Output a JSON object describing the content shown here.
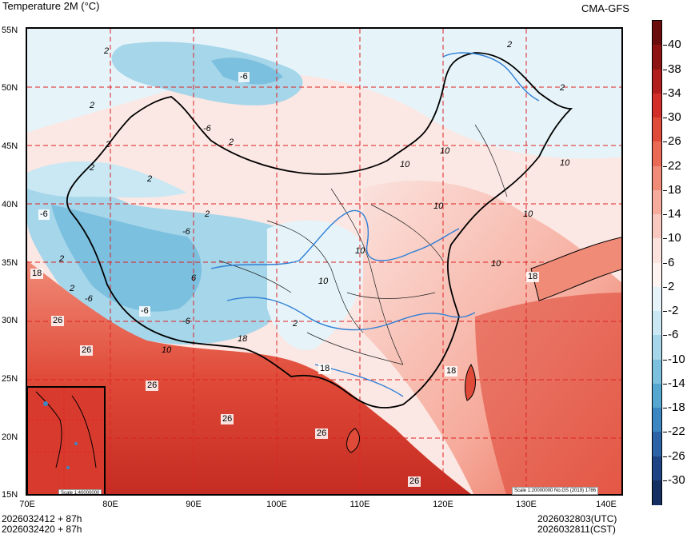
{
  "header": {
    "title": "Temperature  2M (°C)",
    "model": "CMA-GFS"
  },
  "axes": {
    "lat_labels": [
      "55N",
      "50N",
      "45N",
      "40N",
      "35N",
      "30N",
      "25N",
      "20N",
      "15N"
    ],
    "lon_labels": [
      "70E",
      "80E",
      "90E",
      "100E",
      "110E",
      "120E",
      "130E",
      "140E"
    ]
  },
  "legend": {
    "values": [
      "40",
      "38",
      "34",
      "30",
      "26",
      "22",
      "18",
      "14",
      "10",
      "6",
      "2",
      "-2",
      "-6",
      "-10",
      "-14",
      "-18",
      "-22",
      "-26",
      "-30"
    ],
    "colors": [
      "#6b0d0d",
      "#8e1414",
      "#b21d1d",
      "#d32f2a",
      "#e04a38",
      "#ea6a55",
      "#f08b78",
      "#f6ab9c",
      "#f9c8bf",
      "#fbe2dd",
      "#fdf3f1",
      "#e6f4fa",
      "#c9e8f3",
      "#a6d6ea",
      "#7cc0df",
      "#55a6d1",
      "#3c87c2",
      "#2c62a6",
      "#1e4486",
      "#152f63"
    ]
  },
  "contour_labels": [
    {
      "text": "2"
    },
    {
      "text": "-6"
    },
    {
      "text": "2"
    },
    {
      "text": "-6"
    },
    {
      "text": "2"
    },
    {
      "text": "2"
    },
    {
      "text": "2"
    },
    {
      "text": "2"
    },
    {
      "text": "2"
    },
    {
      "text": "-6"
    },
    {
      "text": "2"
    },
    {
      "text": "-6"
    },
    {
      "text": "18"
    },
    {
      "text": "2"
    },
    {
      "text": "-6"
    },
    {
      "text": "-6"
    },
    {
      "text": "6"
    },
    {
      "text": "-6"
    },
    {
      "text": "26"
    },
    {
      "text": "26"
    },
    {
      "text": "10"
    },
    {
      "text": "18"
    },
    {
      "text": "26"
    },
    {
      "text": "26"
    },
    {
      "text": "26"
    },
    {
      "text": "18"
    },
    {
      "text": "10"
    },
    {
      "text": "10"
    },
    {
      "text": "2"
    },
    {
      "text": "18"
    },
    {
      "text": "26"
    },
    {
      "text": "10"
    },
    {
      "text": "10"
    },
    {
      "text": "10"
    },
    {
      "text": "10"
    },
    {
      "text": "10"
    },
    {
      "text": "18"
    },
    {
      "text": "2"
    },
    {
      "text": "2"
    },
    {
      "text": "10"
    }
  ],
  "scale_notes": {
    "main": "Scale 1:20000000 No.GS (2019) 1786",
    "inset": "Scale 1:40000000"
  },
  "footer": {
    "left_line1": "2026032412 + 87h",
    "left_line2": "2026032420 + 87h",
    "right_line1": "2026032803(UTC)",
    "right_line2": "2026032811(CST)"
  }
}
